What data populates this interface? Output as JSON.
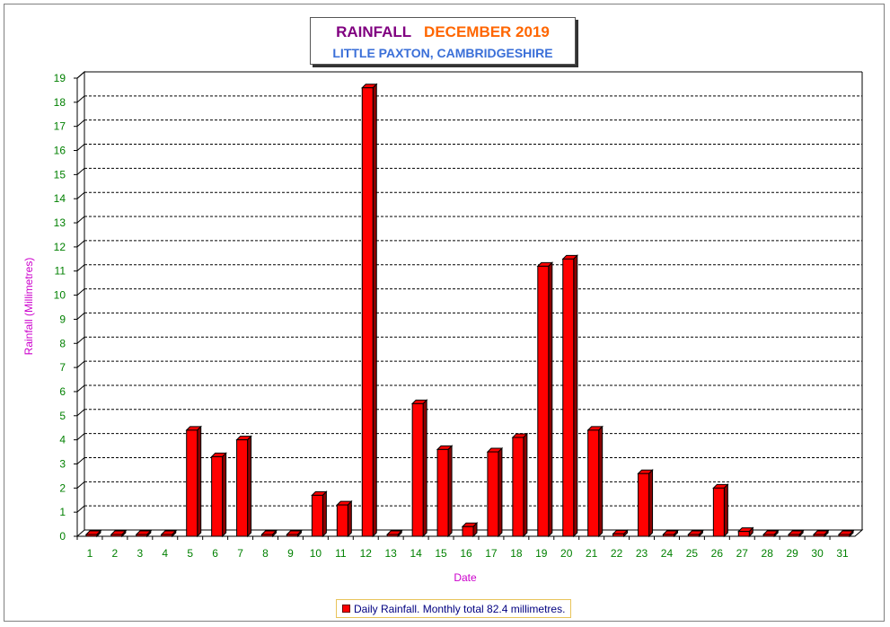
{
  "title": {
    "word1": "RAINFALL",
    "word2": "DECEMBER 2019",
    "subtitle": "LITTLE PAXTON, CAMBRIDGESHIRE"
  },
  "colors": {
    "title_word1": "#800080",
    "title_word2": "#ff6600",
    "subtitle": "#3a6fd8",
    "axis_labels": "#cc00cc",
    "tick_labels": "#008000",
    "bar_front": "#ff0000",
    "bar_side": "#8b0000",
    "legend_text": "#000080"
  },
  "legend": {
    "text": "Daily Rainfall. Monthly total 82.4 millimetres."
  },
  "chart_data": {
    "type": "bar",
    "title": "RAINFALL DECEMBER 2019",
    "subtitle": "LITTLE PAXTON, CAMBRIDGESHIRE",
    "xlabel": "Date",
    "ylabel": "Rainfall  (Millimetres)",
    "ylim": [
      0,
      19
    ],
    "yticks": [
      0,
      1,
      2,
      3,
      4,
      5,
      6,
      7,
      8,
      9,
      10,
      11,
      12,
      13,
      14,
      15,
      16,
      17,
      18,
      19
    ],
    "grid": true,
    "legend_position": "bottom",
    "categories": [
      "1",
      "2",
      "3",
      "4",
      "5",
      "6",
      "7",
      "8",
      "9",
      "10",
      "11",
      "12",
      "13",
      "14",
      "15",
      "16",
      "17",
      "18",
      "19",
      "20",
      "21",
      "22",
      "23",
      "24",
      "25",
      "26",
      "27",
      "28",
      "29",
      "30",
      "31"
    ],
    "series": [
      {
        "name": "Daily Rainfall. Monthly total 82.4 millimetres.",
        "values": [
          0,
          0,
          0,
          0,
          4.4,
          3.3,
          4.0,
          0,
          0,
          1.7,
          1.3,
          18.6,
          0,
          5.5,
          3.6,
          0.4,
          3.5,
          4.1,
          11.2,
          11.5,
          4.4,
          0.1,
          2.6,
          0,
          0,
          2.0,
          0.2,
          0,
          0,
          0,
          0
        ]
      }
    ]
  }
}
